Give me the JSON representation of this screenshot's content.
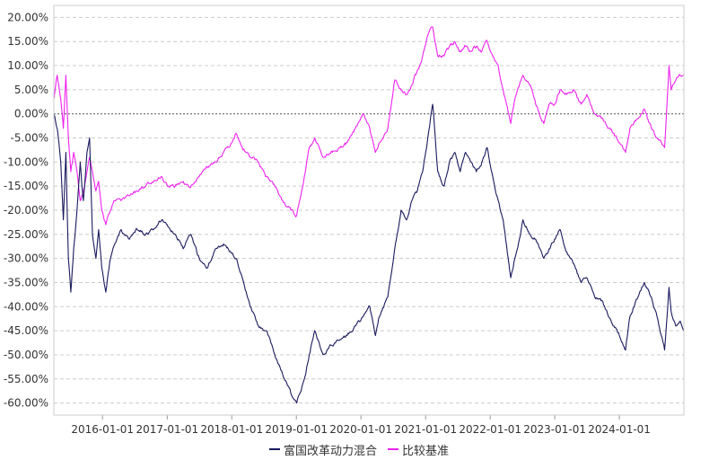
{
  "chart_data": {
    "type": "line",
    "y_unit": "%",
    "ylim": [
      -62.5,
      22.5
    ],
    "xlim": [
      "2015-04-01",
      "2024-12-31"
    ],
    "y_ticks": [
      20,
      15,
      10,
      5,
      0,
      -5,
      -10,
      -15,
      -20,
      -25,
      -30,
      -35,
      -40,
      -45,
      -50,
      -55,
      -60
    ],
    "y_tick_labels": [
      "20.00%",
      "15.00%",
      "10.00%",
      "5.00%",
      "0.00%",
      "-5.00%",
      "-10.00%",
      "-15.00%",
      "-20.00%",
      "-25.00%",
      "-30.00%",
      "-35.00%",
      "-40.00%",
      "-45.00%",
      "-50.00%",
      "-55.00%",
      "-60.00%"
    ],
    "x_ticks": [
      "2016-01-01",
      "2017-01-01",
      "2018-01-01",
      "2019-01-01",
      "2020-01-01",
      "2021-01-01",
      "2022-01-01",
      "2023-01-01",
      "2024-01-01"
    ],
    "x_tick_labels": [
      "2016-01-01",
      "2017-01-01",
      "2018-01-01",
      "2019-01-01",
      "2020-01-01",
      "2021-01-01",
      "2022-01-01",
      "2023-01-01",
      "2024-01-01"
    ],
    "grid": true,
    "zero_line": "dashed",
    "legend_position": "bottom-center",
    "series": [
      {
        "name": "富国改革动力混合",
        "color": "#1a1a5e",
        "points": [
          [
            "2015-04-01",
            0
          ],
          [
            "2015-04-20",
            -3
          ],
          [
            "2015-05-10",
            -10
          ],
          [
            "2015-05-25",
            -22
          ],
          [
            "2015-06-08",
            -8
          ],
          [
            "2015-06-22",
            -30
          ],
          [
            "2015-07-06",
            -37
          ],
          [
            "2015-07-22",
            -28
          ],
          [
            "2015-08-10",
            -20
          ],
          [
            "2015-08-28",
            -10
          ],
          [
            "2015-09-15",
            -18
          ],
          [
            "2015-10-05",
            -8
          ],
          [
            "2015-10-20",
            -5
          ],
          [
            "2015-11-05",
            -25
          ],
          [
            "2015-11-25",
            -30
          ],
          [
            "2015-12-10",
            -24
          ],
          [
            "2015-12-28",
            -32
          ],
          [
            "2016-01-20",
            -37
          ],
          [
            "2016-02-15",
            -30
          ],
          [
            "2016-03-10",
            -27
          ],
          [
            "2016-04-15",
            -24
          ],
          [
            "2016-06-01",
            -26
          ],
          [
            "2016-07-15",
            -24
          ],
          [
            "2016-09-01",
            -25
          ],
          [
            "2016-10-15",
            -24
          ],
          [
            "2016-12-01",
            -22
          ],
          [
            "2017-01-01",
            -23
          ],
          [
            "2017-02-15",
            -25
          ],
          [
            "2017-04-01",
            -28
          ],
          [
            "2017-05-15",
            -25
          ],
          [
            "2017-07-01",
            -30
          ],
          [
            "2017-08-15",
            -32
          ],
          [
            "2017-10-01",
            -28
          ],
          [
            "2017-11-15",
            -27
          ],
          [
            "2018-01-01",
            -29
          ],
          [
            "2018-01-25",
            -30
          ],
          [
            "2018-03-01",
            -34
          ],
          [
            "2018-04-15",
            -40
          ],
          [
            "2018-06-01",
            -44
          ],
          [
            "2018-07-15",
            -45
          ],
          [
            "2018-09-01",
            -50
          ],
          [
            "2018-10-15",
            -54
          ],
          [
            "2018-12-01",
            -58
          ],
          [
            "2019-01-03",
            -60
          ],
          [
            "2019-02-15",
            -55
          ],
          [
            "2019-03-15",
            -50
          ],
          [
            "2019-04-15",
            -45
          ],
          [
            "2019-06-01",
            -50
          ],
          [
            "2019-07-15",
            -48
          ],
          [
            "2019-09-01",
            -47
          ],
          [
            "2019-10-15",
            -46
          ],
          [
            "2019-12-01",
            -44
          ],
          [
            "2020-01-15",
            -42
          ],
          [
            "2020-02-20",
            -40
          ],
          [
            "2020-03-23",
            -46
          ],
          [
            "2020-04-15",
            -42
          ],
          [
            "2020-06-01",
            -38
          ],
          [
            "2020-07-10",
            -28
          ],
          [
            "2020-08-15",
            -20
          ],
          [
            "2020-09-15",
            -22
          ],
          [
            "2020-10-15",
            -18
          ],
          [
            "2020-11-15",
            -16
          ],
          [
            "2020-12-15",
            -12
          ],
          [
            "2021-01-10",
            -6
          ],
          [
            "2021-02-10",
            2
          ],
          [
            "2021-03-10",
            -12
          ],
          [
            "2021-04-15",
            -15
          ],
          [
            "2021-05-15",
            -10
          ],
          [
            "2021-06-15",
            -8
          ],
          [
            "2021-07-15",
            -12
          ],
          [
            "2021-08-15",
            -8
          ],
          [
            "2021-09-15",
            -10
          ],
          [
            "2021-10-15",
            -12
          ],
          [
            "2021-11-15",
            -10
          ],
          [
            "2021-12-15",
            -7
          ],
          [
            "2022-01-15",
            -13
          ],
          [
            "2022-02-15",
            -18
          ],
          [
            "2022-03-15",
            -22
          ],
          [
            "2022-04-27",
            -34
          ],
          [
            "2022-05-20",
            -30
          ],
          [
            "2022-06-15",
            -26
          ],
          [
            "2022-07-05",
            -22
          ],
          [
            "2022-08-15",
            -25
          ],
          [
            "2022-09-15",
            -26
          ],
          [
            "2022-10-31",
            -30
          ],
          [
            "2022-11-30",
            -28
          ],
          [
            "2022-12-31",
            -26
          ],
          [
            "2023-01-31",
            -24
          ],
          [
            "2023-03-01",
            -28
          ],
          [
            "2023-04-15",
            -31
          ],
          [
            "2023-05-30",
            -35
          ],
          [
            "2023-07-01",
            -34
          ],
          [
            "2023-08-15",
            -38
          ],
          [
            "2023-09-30",
            -39
          ],
          [
            "2023-10-31",
            -42
          ],
          [
            "2023-12-01",
            -44
          ],
          [
            "2024-01-01",
            -46
          ],
          [
            "2024-02-05",
            -49
          ],
          [
            "2024-03-01",
            -42
          ],
          [
            "2024-04-15",
            -38
          ],
          [
            "2024-05-20",
            -35
          ],
          [
            "2024-06-30",
            -38
          ],
          [
            "2024-08-01",
            -42
          ],
          [
            "2024-09-13",
            -49
          ],
          [
            "2024-10-08",
            -36
          ],
          [
            "2024-10-20",
            -41
          ],
          [
            "2024-11-15",
            -44
          ],
          [
            "2024-12-10",
            -43
          ],
          [
            "2024-12-31",
            -45
          ]
        ]
      },
      {
        "name": "比较基准",
        "color": "#ee22ee",
        "points": [
          [
            "2015-04-01",
            3
          ],
          [
            "2015-04-20",
            8
          ],
          [
            "2015-05-10",
            3
          ],
          [
            "2015-05-25",
            -3
          ],
          [
            "2015-06-08",
            8
          ],
          [
            "2015-06-22",
            -5
          ],
          [
            "2015-07-06",
            -12
          ],
          [
            "2015-07-22",
            -8
          ],
          [
            "2015-08-10",
            -12
          ],
          [
            "2015-08-28",
            -18
          ],
          [
            "2015-09-15",
            -16
          ],
          [
            "2015-10-05",
            -12
          ],
          [
            "2015-10-20",
            -9
          ],
          [
            "2015-11-05",
            -12
          ],
          [
            "2015-11-25",
            -16
          ],
          [
            "2015-12-10",
            -14
          ],
          [
            "2015-12-28",
            -20
          ],
          [
            "2016-01-20",
            -23
          ],
          [
            "2016-02-15",
            -20
          ],
          [
            "2016-03-10",
            -18
          ],
          [
            "2016-04-15",
            -18
          ],
          [
            "2016-06-01",
            -17
          ],
          [
            "2016-07-15",
            -16
          ],
          [
            "2016-09-01",
            -15
          ],
          [
            "2016-10-15",
            -14
          ],
          [
            "2016-12-01",
            -13
          ],
          [
            "2017-01-01",
            -15
          ],
          [
            "2017-02-15",
            -15
          ],
          [
            "2017-04-01",
            -14
          ],
          [
            "2017-05-15",
            -15
          ],
          [
            "2017-07-01",
            -13
          ],
          [
            "2017-08-15",
            -11
          ],
          [
            "2017-10-01",
            -10
          ],
          [
            "2017-11-15",
            -8
          ],
          [
            "2018-01-01",
            -6
          ],
          [
            "2018-01-25",
            -4
          ],
          [
            "2018-03-01",
            -7
          ],
          [
            "2018-04-15",
            -9
          ],
          [
            "2018-06-01",
            -10
          ],
          [
            "2018-07-15",
            -13
          ],
          [
            "2018-09-01",
            -15
          ],
          [
            "2018-10-15",
            -18
          ],
          [
            "2018-12-01",
            -20
          ],
          [
            "2019-01-03",
            -21
          ],
          [
            "2019-02-15",
            -13
          ],
          [
            "2019-03-15",
            -7
          ],
          [
            "2019-04-15",
            -5
          ],
          [
            "2019-06-01",
            -9
          ],
          [
            "2019-07-15",
            -8
          ],
          [
            "2019-09-01",
            -7
          ],
          [
            "2019-10-15",
            -6
          ],
          [
            "2019-12-01",
            -3
          ],
          [
            "2020-01-15",
            0
          ],
          [
            "2020-02-20",
            -3
          ],
          [
            "2020-03-23",
            -8
          ],
          [
            "2020-04-15",
            -6
          ],
          [
            "2020-06-01",
            -3
          ],
          [
            "2020-07-10",
            7
          ],
          [
            "2020-08-15",
            5
          ],
          [
            "2020-09-15",
            4
          ],
          [
            "2020-10-15",
            6
          ],
          [
            "2020-11-15",
            9
          ],
          [
            "2020-12-15",
            12
          ],
          [
            "2021-01-10",
            16
          ],
          [
            "2021-02-10",
            18
          ],
          [
            "2021-03-10",
            12
          ],
          [
            "2021-04-15",
            12
          ],
          [
            "2021-05-15",
            14
          ],
          [
            "2021-06-15",
            15
          ],
          [
            "2021-07-15",
            13
          ],
          [
            "2021-08-15",
            14
          ],
          [
            "2021-09-15",
            13
          ],
          [
            "2021-10-15",
            14
          ],
          [
            "2021-11-15",
            13
          ],
          [
            "2021-12-15",
            15
          ],
          [
            "2022-01-15",
            12
          ],
          [
            "2022-02-15",
            10
          ],
          [
            "2022-03-15",
            5
          ],
          [
            "2022-04-27",
            -2
          ],
          [
            "2022-05-20",
            3
          ],
          [
            "2022-06-15",
            6
          ],
          [
            "2022-07-05",
            8
          ],
          [
            "2022-08-15",
            6
          ],
          [
            "2022-09-15",
            2
          ],
          [
            "2022-10-31",
            -2
          ],
          [
            "2022-11-30",
            2
          ],
          [
            "2022-12-31",
            2
          ],
          [
            "2023-01-31",
            5
          ],
          [
            "2023-03-01",
            4
          ],
          [
            "2023-04-15",
            5
          ],
          [
            "2023-05-30",
            2
          ],
          [
            "2023-07-01",
            4
          ],
          [
            "2023-08-15",
            0
          ],
          [
            "2023-09-30",
            -1
          ],
          [
            "2023-10-31",
            -3
          ],
          [
            "2023-12-01",
            -4
          ],
          [
            "2024-01-01",
            -6
          ],
          [
            "2024-02-05",
            -8
          ],
          [
            "2024-03-01",
            -3
          ],
          [
            "2024-04-15",
            -1
          ],
          [
            "2024-05-20",
            1
          ],
          [
            "2024-06-30",
            -3
          ],
          [
            "2024-08-01",
            -5
          ],
          [
            "2024-09-13",
            -7
          ],
          [
            "2024-10-08",
            10
          ],
          [
            "2024-10-20",
            5
          ],
          [
            "2024-11-15",
            7
          ],
          [
            "2024-12-10",
            8
          ],
          [
            "2024-12-31",
            8
          ]
        ]
      }
    ]
  }
}
